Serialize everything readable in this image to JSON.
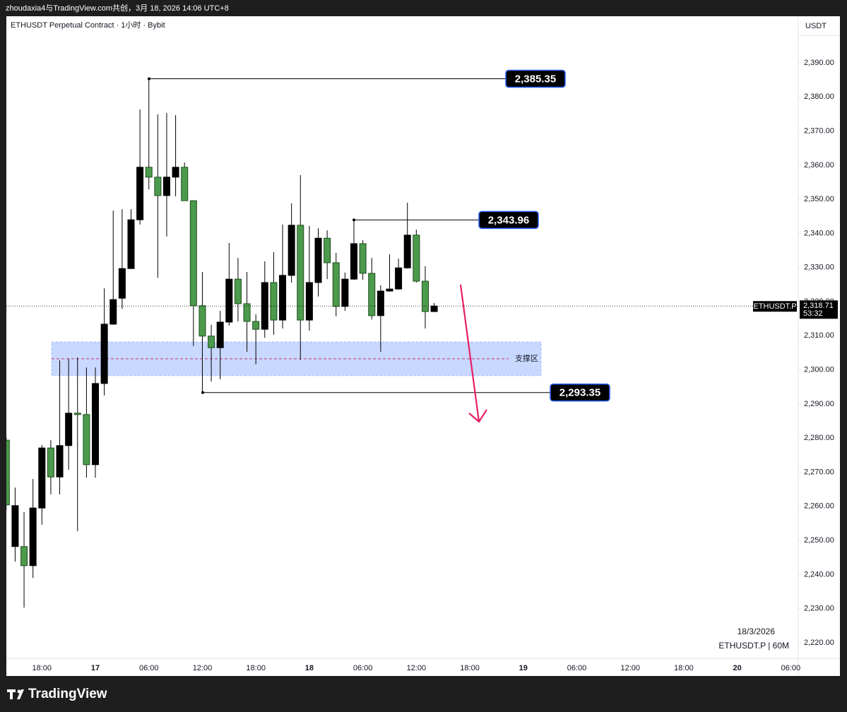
{
  "header": {
    "attribution": "zhoudaxia4与TradingView.com共创，3月 18, 2026 14:06 UTC+8"
  },
  "footer": {
    "brand": "TradingView"
  },
  "chart_data": {
    "type": "candlestick",
    "title": "ETHUSDT Perpetual Contract · 1小时 · Bybit",
    "y_label": "USDT",
    "date_label": "18/3/2026",
    "symbol_label": "ETHUSDT.P | 60M",
    "up_color": "#000000",
    "down_color": "#4c9a4c",
    "categories": [
      null,
      null,
      null,
      null,
      "18:00",
      null,
      null,
      null,
      null,
      null,
      "17",
      null,
      null,
      null,
      null,
      null,
      "06:00",
      null,
      null,
      null,
      null,
      null,
      "12:00",
      null,
      null,
      null,
      null,
      null,
      "18:00",
      null,
      null,
      null,
      null,
      null,
      "18",
      null,
      null,
      null,
      null,
      null,
      "06:00",
      null,
      null,
      null,
      null,
      null,
      "12:00",
      null,
      null,
      null,
      null,
      null,
      "18:00",
      null,
      null,
      null,
      null,
      null,
      "19",
      null,
      null,
      null,
      null,
      null,
      "06:00",
      null,
      null,
      null,
      null,
      null,
      "12:00",
      null,
      null,
      null,
      null,
      null,
      "18:00",
      null,
      null,
      null,
      null,
      null,
      "20",
      null,
      null,
      null,
      null,
      null,
      "06:00"
    ],
    "open": [
      2279.4,
      2248.2,
      2248.2,
      2242.6,
      2259.5,
      2277.1,
      2268.6,
      2277.8,
      2287.3,
      2286.9,
      2272.2,
      2296.0,
      2313.4,
      2321.0,
      2329.7,
      2344.0,
      2359.4,
      2356.5,
      2351.1,
      2356.5,
      2359.4,
      2349.6,
      2318.8,
      2309.9,
      2306.5,
      2314.0,
      2326.6,
      2319.4,
      2314.2,
      2311.9,
      2325.6,
      2314.6,
      2327.7,
      2342.4,
      2314.6,
      2325.6,
      2338.6,
      2331.4,
      2318.6,
      2326.6,
      2337.0,
      2328.3,
      2315.9,
      2323.1,
      2323.7,
      2329.9,
      2339.5,
      2326.0,
      2317.1,
      null,
      null,
      null,
      null,
      null,
      null,
      null,
      null,
      null,
      null,
      null,
      null,
      null,
      null,
      null,
      null,
      null,
      null,
      null,
      null,
      null,
      null,
      null,
      null,
      null,
      null,
      null,
      null,
      null,
      null,
      null,
      null,
      null,
      null,
      null,
      null,
      null,
      null,
      null,
      null
    ],
    "high": [
      2280.2,
      2265.5,
      2258.3,
      2268.0,
      2278.0,
      2279.4,
      2302.8,
      2303.2,
      2303.6,
      2300.7,
      2300.7,
      2323.9,
      2346.7,
      2347.1,
      2347.1,
      2376.3,
      2385.35,
      2374.9,
      2375.3,
      2374.7,
      2360.8,
      2349.6,
      2328.7,
      2313.2,
      2317.3,
      2337.2,
      2332.8,
      2328.7,
      2316.3,
      2331.8,
      2334.5,
      2342.6,
      2348.8,
      2357.1,
      2342.2,
      2341.5,
      2340.9,
      2334.3,
      2328.5,
      2343.96,
      2338.0,
      2332.8,
      2324.8,
      2333.9,
      2332.6,
      2349.0,
      2341.1,
      2330.4,
      2319.6,
      null,
      null,
      null,
      null,
      null,
      null,
      null,
      null,
      null,
      null,
      null,
      null,
      null,
      null,
      null,
      null,
      null,
      null,
      null,
      null,
      null,
      null,
      null,
      null,
      null,
      null,
      null,
      null,
      null,
      null,
      null,
      null,
      null,
      null,
      null,
      null,
      null,
      null,
      null,
      null
    ],
    "low": [
      2259.0,
      2243.8,
      2230.3,
      2239.0,
      2254.6,
      2263.5,
      2263.5,
      2270.7,
      2252.7,
      2268.4,
      2268.4,
      2292.5,
      2313.2,
      2317.9,
      2329.7,
      2342.6,
      2352.9,
      2327.0,
      2339.1,
      2350.9,
      2349.6,
      2307.0,
      2293.35,
      2296.6,
      2297.2,
      2313.0,
      2314.2,
      2305.3,
      2301.6,
      2309.4,
      2310.3,
      2312.1,
      2325.6,
      2303.0,
      2311.5,
      2321.5,
      2326.6,
      2315.7,
      2317.3,
      2326.4,
      2326.4,
      2314.8,
      2305.3,
      2322.9,
      2323.5,
      2329.7,
      2325.6,
      2312.1,
      2316.9,
      null,
      null,
      null,
      null,
      null,
      null,
      null,
      null,
      null,
      null,
      null,
      null,
      null,
      null,
      null,
      null,
      null,
      null,
      null,
      null,
      null,
      null,
      null,
      null,
      null,
      null,
      null,
      null,
      null,
      null,
      null,
      null,
      null,
      null,
      null,
      null,
      null,
      null,
      null,
      null
    ],
    "close": [
      2260.4,
      2260.2,
      2242.6,
      2259.5,
      2277.1,
      2268.6,
      2277.8,
      2287.3,
      2286.9,
      2272.2,
      2296.0,
      2313.4,
      2320.6,
      2329.7,
      2344.0,
      2359.4,
      2356.5,
      2351.1,
      2356.5,
      2359.4,
      2349.6,
      2318.8,
      2309.9,
      2306.5,
      2314.0,
      2326.6,
      2319.4,
      2314.2,
      2311.9,
      2325.6,
      2314.6,
      2327.7,
      2342.4,
      2314.6,
      2325.6,
      2338.6,
      2331.4,
      2318.6,
      2326.6,
      2337.0,
      2328.3,
      2315.9,
      2323.1,
      2323.7,
      2329.9,
      2339.5,
      2326.0,
      2317.1,
      2318.71,
      null,
      null,
      null,
      null,
      null,
      null,
      null,
      null,
      null,
      null,
      null,
      null,
      null,
      null,
      null,
      null,
      null,
      null,
      null,
      null,
      null,
      null,
      null,
      null,
      null,
      null,
      null,
      null,
      null,
      null,
      null,
      null,
      null,
      null,
      null,
      null,
      null,
      null,
      null,
      null
    ],
    "ylim": [
      2215.43,
      2403.67
    ],
    "yticks": [
      {
        "value": 2220,
        "label": "2,220.00"
      },
      {
        "value": 2230,
        "label": "2,230.00"
      },
      {
        "value": 2240,
        "label": "2,240.00"
      },
      {
        "value": 2250,
        "label": "2,250.00"
      },
      {
        "value": 2260,
        "label": "2,260.00"
      },
      {
        "value": 2270,
        "label": "2,270.00"
      },
      {
        "value": 2280,
        "label": "2,280.00"
      },
      {
        "value": 2290,
        "label": "2,290.00"
      },
      {
        "value": 2300,
        "label": "2,300.00"
      },
      {
        "value": 2310,
        "label": "2,310.00"
      },
      {
        "value": 2320,
        "label": "2,320.00"
      },
      {
        "value": 2330,
        "label": "2,330.00"
      },
      {
        "value": 2340,
        "label": "2,340.00"
      },
      {
        "value": 2350,
        "label": "2,350.00"
      },
      {
        "value": 2360,
        "label": "2,360.00"
      },
      {
        "value": 2370,
        "label": "2,370.00"
      },
      {
        "value": 2380,
        "label": "2,380.00"
      },
      {
        "value": 2390,
        "label": "2,390.00"
      }
    ],
    "price_labels": [
      {
        "value": 2385.35,
        "label": "2,385.35"
      },
      {
        "value": 2343.96,
        "label": "2,343.96"
      },
      {
        "value": 2293.35,
        "label": "2,293.35"
      }
    ],
    "support_zone": {
      "label": "支撑区",
      "low": 2298.3,
      "high": 2308.2
    },
    "last_price": {
      "symbol": "ETHUSDT.P",
      "value": 2318.71,
      "label": "2,318.71",
      "countdown": "53:32"
    }
  }
}
